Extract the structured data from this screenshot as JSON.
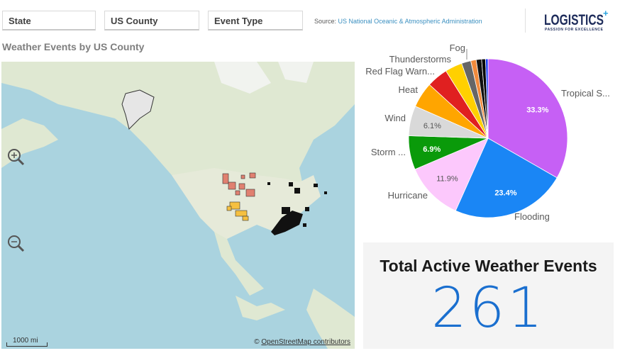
{
  "filters": [
    {
      "label": "State"
    },
    {
      "label": "US County"
    },
    {
      "label": "Event Type"
    }
  ],
  "source": {
    "prefix": "Source:",
    "link": "US National Oceanic & Atmospheric Administration"
  },
  "logo": {
    "text": "LOGISTICS",
    "tagline": "PASSION FOR EXCELLENCE"
  },
  "map": {
    "title": "Weather Events by US County",
    "scale": "1000 mi",
    "attribution_prefix": "©",
    "attribution_link": "OpenStreetMap contributors",
    "zoom_in": "zoom-in-icon",
    "zoom_out": "zoom-out-icon"
  },
  "chart_data": {
    "type": "pie",
    "start": "top",
    "direction": "clockwise",
    "slices": [
      {
        "name": "Tropical S...",
        "value": 33.3,
        "color": "#c660f5",
        "label": "33.3%"
      },
      {
        "name": "Flooding",
        "value": 23.4,
        "color": "#1a86f5",
        "label": "23.4%"
      },
      {
        "name": "Hurricane",
        "value": 11.9,
        "color": "#fcc8fc",
        "label": "11.9%"
      },
      {
        "name": "Storm ...",
        "value": 6.9,
        "color": "#0a9a0a",
        "label": "6.9%"
      },
      {
        "name": "Wind",
        "value": 6.1,
        "color": "#d9d9d9",
        "label": "6.1%"
      },
      {
        "name": "Heat",
        "value": 5.2,
        "color": "#ffa500",
        "label": ""
      },
      {
        "name": "Red Flag Warn...",
        "value": 4.3,
        "color": "#e02020",
        "label": ""
      },
      {
        "name": "Thunderstorms",
        "value": 3.5,
        "color": "#ffd000",
        "label": ""
      },
      {
        "name": "Fog",
        "value": 1.9,
        "color": "#666666",
        "label": ""
      },
      {
        "name": "",
        "value": 1.1,
        "color": "#f08a3c",
        "label": ""
      },
      {
        "name": "",
        "value": 1.1,
        "color": "#111111",
        "label": ""
      },
      {
        "name": "",
        "value": 0.8,
        "color": "#000000",
        "label": ""
      },
      {
        "name": "",
        "value": 0.5,
        "color": "#1a3cf5",
        "label": ""
      }
    ]
  },
  "kpi": {
    "title": "Total Active Weather Events",
    "value": "261"
  }
}
